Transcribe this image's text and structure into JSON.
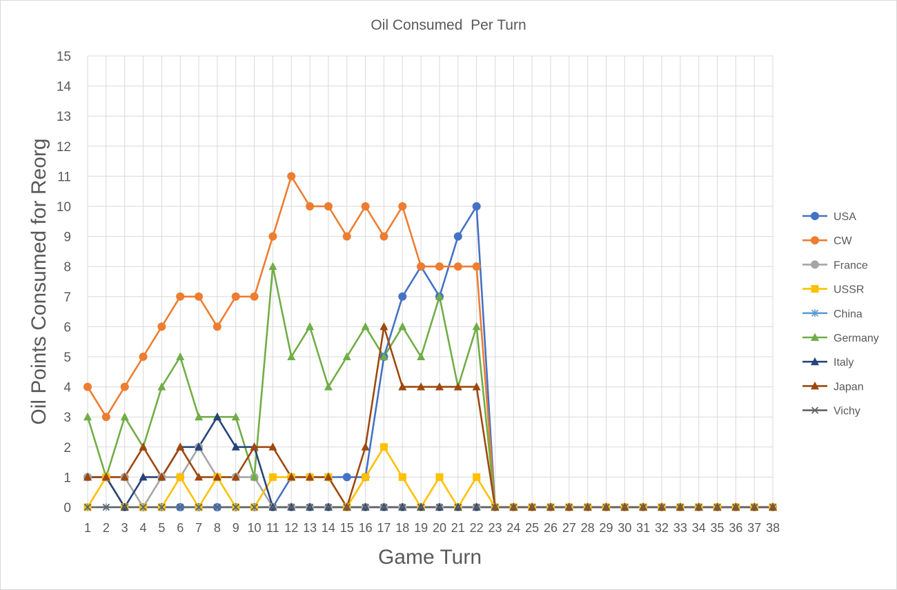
{
  "chart_data": {
    "type": "line",
    "title": "Oil Consumed  Per Turn",
    "xlabel": "Game Turn",
    "ylabel": "Oil Points Consumed for Reorg",
    "ylim": [
      0,
      15
    ],
    "grid": true,
    "legend_position": "right",
    "x": [
      1,
      2,
      3,
      4,
      5,
      6,
      7,
      8,
      9,
      10,
      11,
      12,
      13,
      14,
      15,
      16,
      17,
      18,
      19,
      20,
      21,
      22,
      23,
      24,
      25,
      26,
      27,
      28,
      29,
      30,
      31,
      32,
      33,
      34,
      35,
      36,
      37,
      38
    ],
    "series": [
      {
        "name": "USA",
        "color": "#4472c4",
        "marker": "circle",
        "values": [
          1,
          1,
          0,
          0,
          0,
          0,
          0,
          0,
          0,
          0,
          0,
          1,
          1,
          1,
          1,
          1,
          5,
          7,
          8,
          7,
          9,
          10,
          0,
          0,
          0,
          0,
          0,
          0,
          0,
          0,
          0,
          0,
          0,
          0,
          0,
          0,
          0,
          0
        ]
      },
      {
        "name": "CW",
        "color": "#ed7d31",
        "marker": "circle",
        "values": [
          4,
          3,
          4,
          5,
          6,
          7,
          7,
          6,
          7,
          7,
          9,
          11,
          10,
          10,
          9,
          10,
          9,
          10,
          8,
          8,
          8,
          8,
          0,
          0,
          0,
          0,
          0,
          0,
          0,
          0,
          0,
          0,
          0,
          0,
          0,
          0,
          0,
          0
        ]
      },
      {
        "name": "France",
        "color": "#a5a5a5",
        "marker": "circle",
        "values": [
          1,
          1,
          1,
          0,
          1,
          1,
          2,
          1,
          1,
          1,
          0,
          0,
          0,
          0,
          0,
          0,
          0,
          0,
          0,
          0,
          0,
          0,
          0,
          0,
          0,
          0,
          0,
          0,
          0,
          0,
          0,
          0,
          0,
          0,
          0,
          0,
          0,
          0
        ]
      },
      {
        "name": "USSR",
        "color": "#ffc000",
        "marker": "square",
        "values": [
          0,
          1,
          0,
          0,
          0,
          1,
          0,
          1,
          0,
          0,
          1,
          1,
          1,
          1,
          0,
          1,
          2,
          1,
          0,
          1,
          0,
          1,
          0,
          0,
          0,
          0,
          0,
          0,
          0,
          0,
          0,
          0,
          0,
          0,
          0,
          0,
          0,
          0
        ]
      },
      {
        "name": "China",
        "color": "#5b9bd5",
        "marker": "star",
        "values": [
          0,
          0,
          0,
          0,
          0,
          0,
          0,
          0,
          0,
          0,
          0,
          0,
          0,
          0,
          0,
          0,
          0,
          0,
          0,
          0,
          0,
          0,
          0,
          0,
          0,
          0,
          0,
          0,
          0,
          0,
          0,
          0,
          0,
          0,
          0,
          0,
          0,
          0
        ]
      },
      {
        "name": "Germany",
        "color": "#70ad47",
        "marker": "triangle",
        "values": [
          3,
          1,
          3,
          2,
          4,
          5,
          3,
          3,
          3,
          1,
          8,
          5,
          6,
          4,
          5,
          6,
          5,
          6,
          5,
          7,
          4,
          6,
          0,
          0,
          0,
          0,
          0,
          0,
          0,
          0,
          0,
          0,
          0,
          0,
          0,
          0,
          0,
          0
        ]
      },
      {
        "name": "Italy",
        "color": "#264478",
        "marker": "triangle",
        "values": [
          1,
          1,
          0,
          1,
          1,
          2,
          2,
          3,
          2,
          2,
          0,
          0,
          0,
          0,
          0,
          0,
          0,
          0,
          0,
          0,
          0,
          0,
          0,
          0,
          0,
          0,
          0,
          0,
          0,
          0,
          0,
          0,
          0,
          0,
          0,
          0,
          0,
          0
        ]
      },
      {
        "name": "Japan",
        "color": "#9e480e",
        "marker": "triangle",
        "values": [
          1,
          1,
          1,
          2,
          1,
          2,
          1,
          1,
          1,
          2,
          2,
          1,
          1,
          1,
          0,
          2,
          6,
          4,
          4,
          4,
          4,
          4,
          0,
          0,
          0,
          0,
          0,
          0,
          0,
          0,
          0,
          0,
          0,
          0,
          0,
          0,
          0,
          0
        ]
      },
      {
        "name": "Vichy",
        "color": "#636363",
        "marker": "x",
        "values": [
          0,
          0,
          0,
          0,
          0,
          0,
          0,
          0,
          0,
          0,
          0,
          0,
          0,
          0,
          0,
          0,
          0,
          0,
          0,
          0,
          0,
          0,
          0,
          0,
          0,
          0,
          0,
          0,
          0,
          0,
          0,
          0,
          0,
          0,
          0,
          0,
          0,
          0
        ]
      }
    ]
  }
}
